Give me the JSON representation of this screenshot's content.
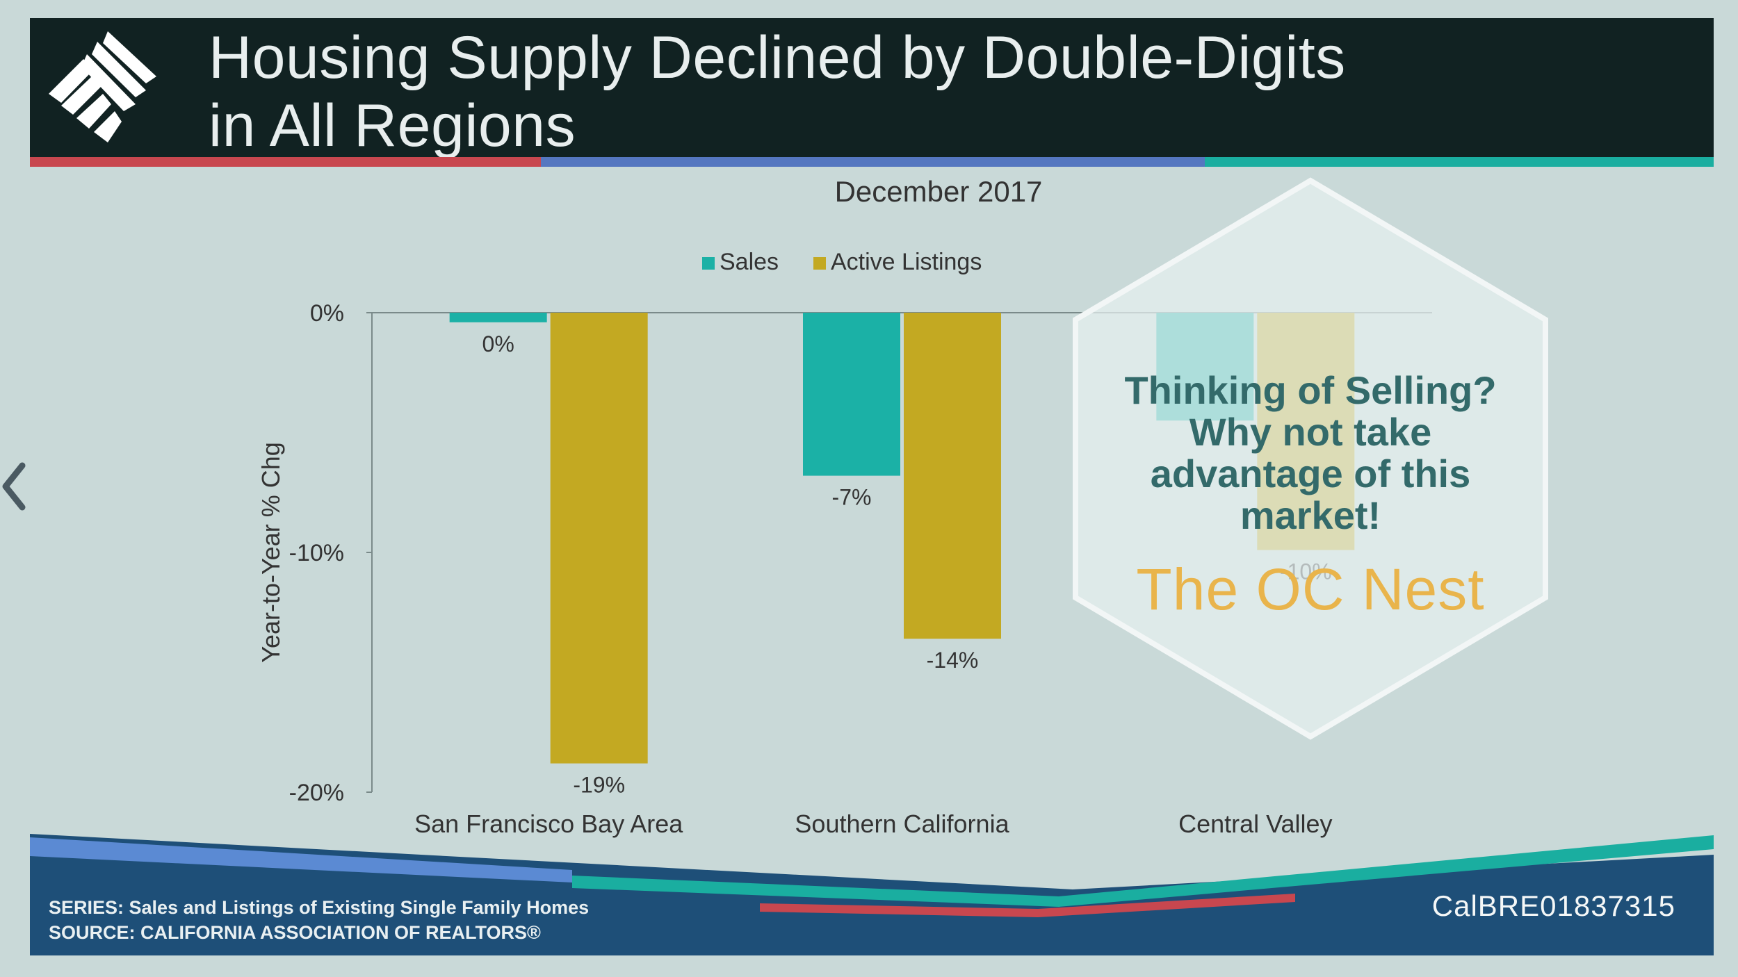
{
  "header": {
    "title_line1": "Housing Supply Declined by Double-Digits",
    "title_line2": "in All Regions",
    "stripe_colors": [
      "#c8474f",
      "#5577c0",
      "#1aaea0"
    ]
  },
  "nav": {
    "back_icon": "chevron-left-icon"
  },
  "chart_data": {
    "type": "bar",
    "title": "December 2017",
    "ylabel": "Year-to-Year % Chg",
    "xlabel": "",
    "categories": [
      "San Francisco Bay Area",
      "Southern California",
      "Central Valley"
    ],
    "series": [
      {
        "name": "Sales",
        "color": "#1bb1a6",
        "values": [
          -0.4,
          -6.8,
          -4.5
        ],
        "labels": [
          "0%",
          "-7%",
          ""
        ]
      },
      {
        "name": "Active Listings",
        "color": "#c3a922",
        "values": [
          -18.8,
          -13.6,
          -9.9
        ],
        "labels": [
          "-19%",
          "-14%",
          "-10%"
        ]
      }
    ],
    "yticks": [
      "0%",
      "-10%",
      "-20%"
    ],
    "ytick_values": [
      0,
      -10,
      -20
    ],
    "ylim": [
      -20,
      0
    ],
    "grid": false,
    "legend": "top-center"
  },
  "footer": {
    "series_note": "SERIES: Sales and Listings of Existing Single Family Homes",
    "source_note": "SOURCE:  CALIFORNIA ASSOCIATION OF REALTORS®",
    "license": "CalBRE01837315"
  },
  "overlay": {
    "cta_line1": "Thinking of Selling?",
    "cta_line2": "Why not take",
    "cta_line3": "advantage of this",
    "cta_line4": "market!",
    "brand": "The OC Nest"
  }
}
